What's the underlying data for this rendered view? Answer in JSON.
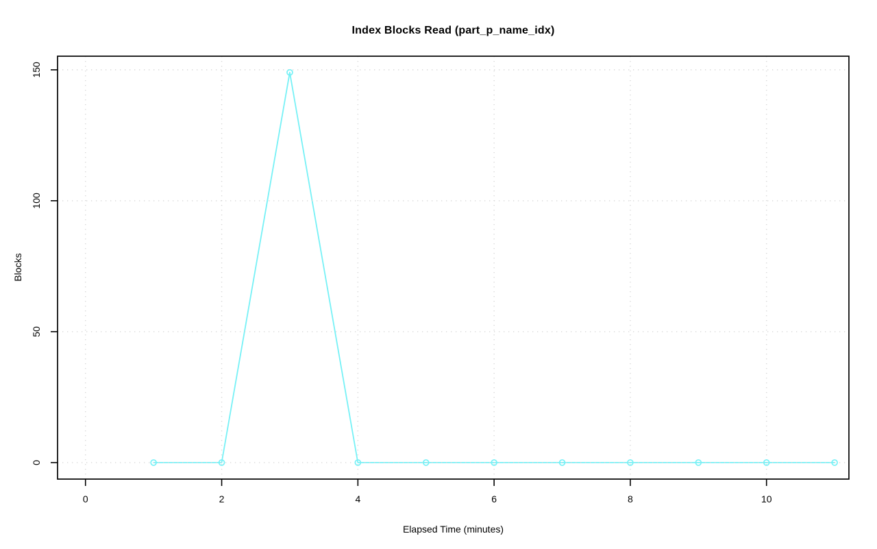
{
  "chart_data": {
    "type": "line",
    "title": "Index Blocks Read (part_p_name_idx)",
    "xlabel": "Elapsed Time (minutes)",
    "ylabel": "Blocks",
    "x": [
      1,
      2,
      3,
      4,
      5,
      6,
      7,
      8,
      9,
      10,
      11
    ],
    "series": [
      {
        "name": "Blocks",
        "marker": "open-circle",
        "values": [
          0,
          0,
          149,
          0,
          0,
          0,
          0,
          0,
          0,
          0,
          0
        ]
      }
    ],
    "xticks": [
      0,
      2,
      4,
      6,
      8,
      10
    ],
    "yticks": [
      0,
      50,
      100,
      150
    ],
    "xlim": [
      -0.41,
      11.21
    ],
    "ylim": [
      -6.3,
      155.2
    ],
    "grid": true,
    "grid_style": "dotted",
    "legend": "none",
    "colors": {
      "line": "#76f1f6",
      "grid": "#d6d6d6",
      "axis": "#000000",
      "text": "#000000",
      "background": "#ffffff"
    }
  }
}
